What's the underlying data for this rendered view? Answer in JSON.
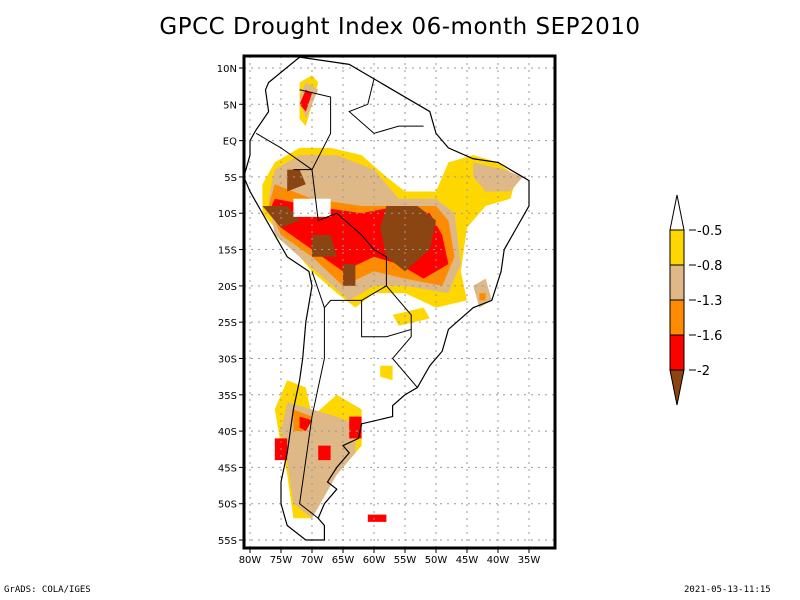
{
  "title": "GPCC Drought Index 06-month SEP2010",
  "footer": {
    "left": "GrADS: COLA/IGES",
    "right": "2021-05-13-11:15"
  },
  "chart_data": {
    "type": "heatmap",
    "title": "GPCC Drought Index 06-month SEP2010",
    "region": "South America",
    "lon_range": [
      -81,
      -31
    ],
    "lat_range": [
      -56,
      11.5
    ],
    "x_ticks": [
      "80W",
      "75W",
      "70W",
      "65W",
      "60W",
      "55W",
      "50W",
      "45W",
      "40W",
      "35W"
    ],
    "x_tick_values": [
      -80,
      -75,
      -70,
      -65,
      -60,
      -55,
      -50,
      -45,
      -40,
      -35
    ],
    "y_ticks": [
      "10N",
      "5N",
      "EQ",
      "5S",
      "10S",
      "15S",
      "20S",
      "25S",
      "30S",
      "35S",
      "40S",
      "45S",
      "50S",
      "55S"
    ],
    "y_tick_values": [
      10,
      5,
      0,
      -5,
      -10,
      -15,
      -20,
      -25,
      -30,
      -35,
      -40,
      -45,
      -50,
      -55
    ],
    "grid": true,
    "legend": {
      "placement": "right",
      "labels": [
        "-0.5",
        "-0.8",
        "-1.3",
        "-1.6",
        "-2"
      ],
      "levels": [
        -0.5,
        -0.8,
        -1.3,
        -1.6,
        -2
      ],
      "colors": {
        "above": "#ffffff",
        "band_-0.8_-0.5": "#ffd700",
        "band_-1.3_-0.8": "#deb887",
        "band_-1.6_-1.3": "#ff8c00",
        "band_-2_-1.6": "#ff0000",
        "below": "#8b4513"
      },
      "color_order": [
        "#ffffff",
        "#ffd700",
        "#deb887",
        "#ff8c00",
        "#ff0000",
        "#8b4513"
      ]
    },
    "regions": [
      {
        "name": "central-brazil-bolivia-core",
        "level": "below",
        "center": [
          -55,
          -12
        ]
      },
      {
        "name": "amazon-west-core",
        "level": "below",
        "center": [
          -74,
          -10
        ]
      },
      {
        "name": "northwest-amazon-core",
        "level": "below",
        "center": [
          -73,
          -5
        ]
      },
      {
        "name": "bolivia-core",
        "level": "below",
        "center": [
          -64,
          -18
        ]
      },
      {
        "name": "venezuela-colombia-anomaly",
        "level": "band_-2_-1.6",
        "center": [
          -71,
          6
        ]
      },
      {
        "name": "patagonia-anomaly",
        "level": "band_-2_-1.6",
        "center": [
          -68,
          -42
        ]
      },
      {
        "name": "chile-south-anomaly",
        "level": "band_-2_-1.6",
        "center": [
          -74,
          -43
        ]
      },
      {
        "name": "falklands-anomaly",
        "level": "band_-2_-1.6",
        "center": [
          -59,
          -52
        ]
      },
      {
        "name": "northeast-brazil-dry",
        "level": "band_-0.8_-0.5",
        "center": [
          -46,
          -7
        ]
      },
      {
        "name": "southeast-brazil-anomaly",
        "level": "band_-1.6_-1.3",
        "center": [
          -43,
          -20
        ]
      }
    ]
  }
}
